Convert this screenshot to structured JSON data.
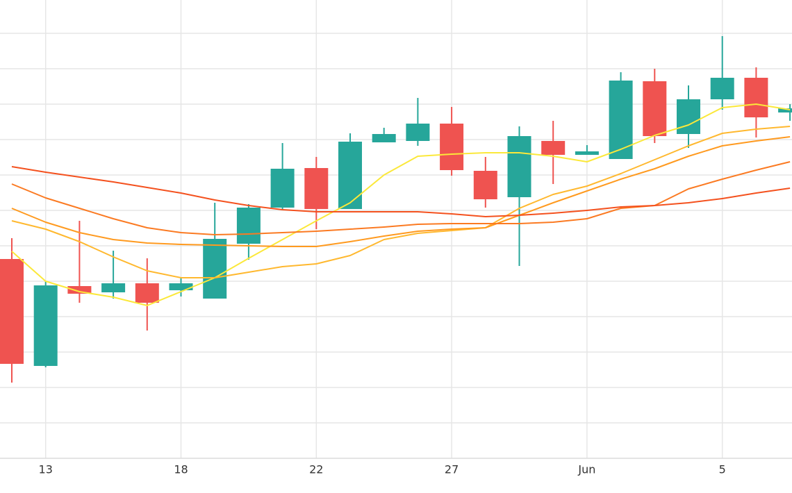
{
  "chart_data": {
    "type": "candlestick",
    "categories": [
      null,
      "13",
      null,
      null,
      null,
      "18",
      null,
      null,
      null,
      "22",
      null,
      null,
      null,
      "27",
      null,
      null,
      null,
      "Jun",
      null,
      null,
      null,
      "5",
      null,
      null
    ],
    "open": [
      287,
      133,
      248,
      239,
      252,
      242,
      230,
      309,
      361,
      418,
      359,
      455,
      457,
      482,
      414,
      376,
      457,
      437,
      431,
      543,
      467,
      517,
      548,
      498
    ],
    "high": [
      317,
      255,
      342,
      299,
      288,
      260,
      368,
      366,
      454,
      434,
      468,
      476,
      519,
      506,
      434,
      478,
      486,
      451,
      556,
      561,
      537,
      608,
      563,
      510
    ],
    "low": [
      109,
      131,
      224,
      230,
      184,
      233,
      230,
      286,
      358,
      330,
      359,
      455,
      450,
      407,
      361,
      277,
      395,
      437,
      431,
      454,
      447,
      502,
      462,
      486
    ],
    "close": [
      136,
      249,
      237,
      252,
      224,
      252,
      316,
      361,
      417,
      359,
      456,
      467,
      482,
      415,
      373,
      464,
      437,
      442,
      544,
      464,
      517,
      548,
      491,
      504
    ],
    "up_color": "#26a69a",
    "down_color": "#ef5350",
    "lines": [
      {
        "color": "#fbe83a",
        "values": [
          298,
          255,
          240,
          232,
          220,
          240,
          260,
          288,
          315,
          342,
          368,
          408,
          435,
          438,
          440,
          440,
          435,
          427,
          445,
          465,
          480,
          505,
          510,
          502
        ]
      },
      {
        "color": "#ffb82e",
        "values": [
          342,
          330,
          312,
          290,
          270,
          260,
          260,
          268,
          276,
          280,
          292,
          315,
          324,
          328,
          332,
          360,
          380,
          392,
          410,
          430,
          450,
          468,
          474,
          478
        ]
      },
      {
        "color": "#ff9a1f",
        "values": [
          360,
          340,
          325,
          315,
          310,
          308,
          307,
          306,
          305,
          305,
          312,
          320,
          327,
          330,
          332,
          350,
          368,
          385,
          402,
          417,
          435,
          450,
          457,
          463
        ]
      },
      {
        "color": "#fb7a22",
        "values": [
          395,
          375,
          360,
          345,
          332,
          325,
          322,
          323,
          325,
          327,
          330,
          333,
          337,
          338,
          338,
          338,
          340,
          345,
          360,
          364,
          388,
          402,
          415,
          427
        ]
      },
      {
        "color": "#f4511e",
        "values": [
          420,
          412,
          405,
          398,
          390,
          382,
          372,
          364,
          358,
          355,
          355,
          355,
          355,
          352,
          348,
          350,
          353,
          357,
          362,
          364,
          368,
          374,
          382,
          389
        ]
      }
    ],
    "ylim": [
      0,
      660
    ],
    "yticks": [
      51,
      102,
      153,
      204,
      255,
      306,
      357,
      408,
      459,
      510,
      561,
      612
    ],
    "grid": true
  }
}
